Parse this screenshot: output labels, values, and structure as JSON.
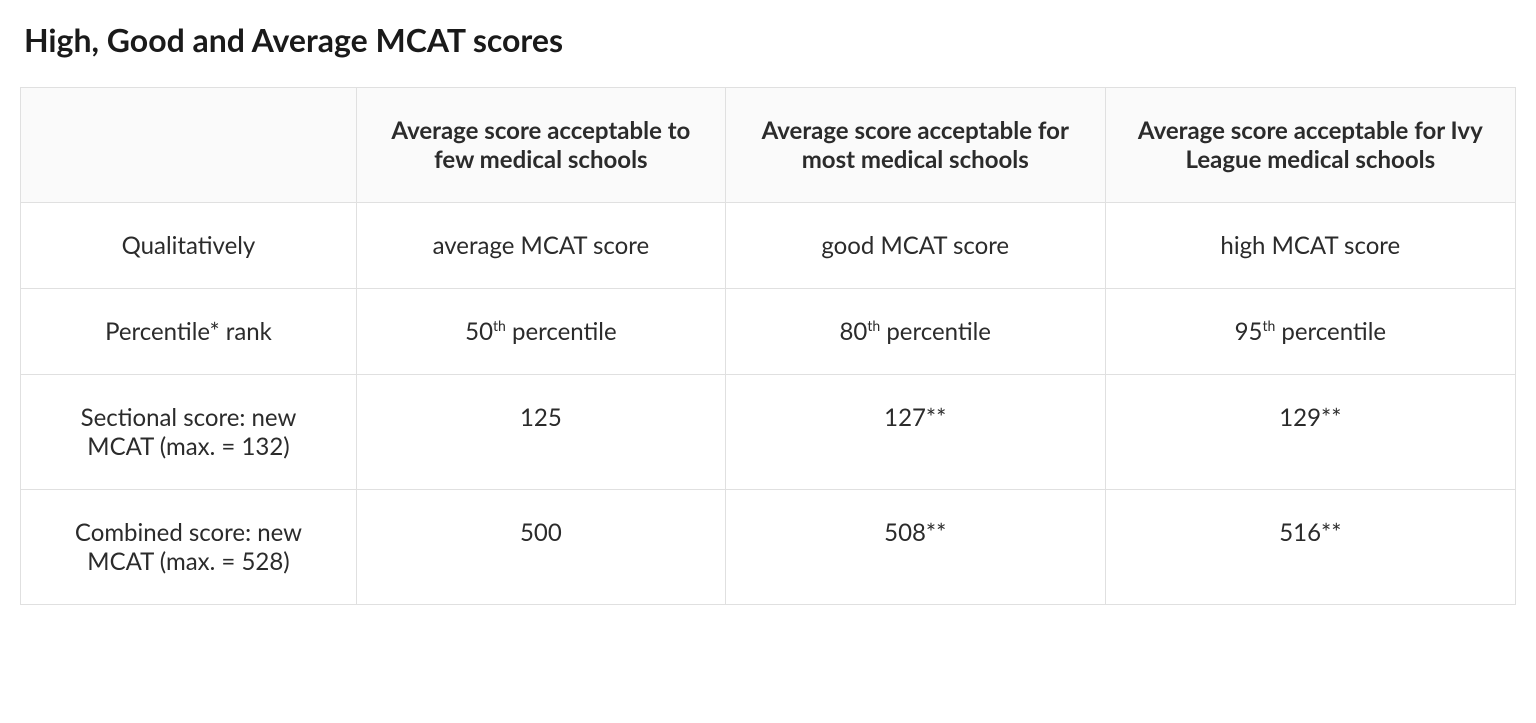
{
  "title": "High, Good and Average MCAT scores",
  "table": {
    "headers": [
      "",
      "Average score acceptable to few medical schools",
      "Average score acceptable for most medical schools",
      "Average score acceptable for Ivy League medical schools"
    ],
    "rows": [
      {
        "label": "Qualitatively",
        "cells": [
          "average MCAT score",
          "good MCAT score",
          "high MCAT score"
        ]
      },
      {
        "label": "Percentile* rank",
        "cells_html": [
          "50<sup>th</sup> percentile",
          "80<sup>th</sup> percentile",
          "95<sup>th</sup> percentile"
        ]
      },
      {
        "label": "Sectional score: new MCAT (max. = 132)",
        "cells": [
          "125",
          "127**",
          "129**"
        ]
      },
      {
        "label": "Combined score: new MCAT (max. = 528)",
        "cells": [
          "500",
          "508**",
          "516**"
        ]
      }
    ],
    "styling": {
      "border_color": "#e0e0e0",
      "header_bg": "#fafafa",
      "body_bg": "#ffffff",
      "text_color": "#2b2b2b",
      "title_color": "#1a1a1a",
      "title_fontsize": 32,
      "cell_fontsize": 24,
      "header_fontsize": 24,
      "header_fontweight": 700,
      "column_widths_pct": [
        25,
        25,
        25,
        25
      ]
    }
  }
}
